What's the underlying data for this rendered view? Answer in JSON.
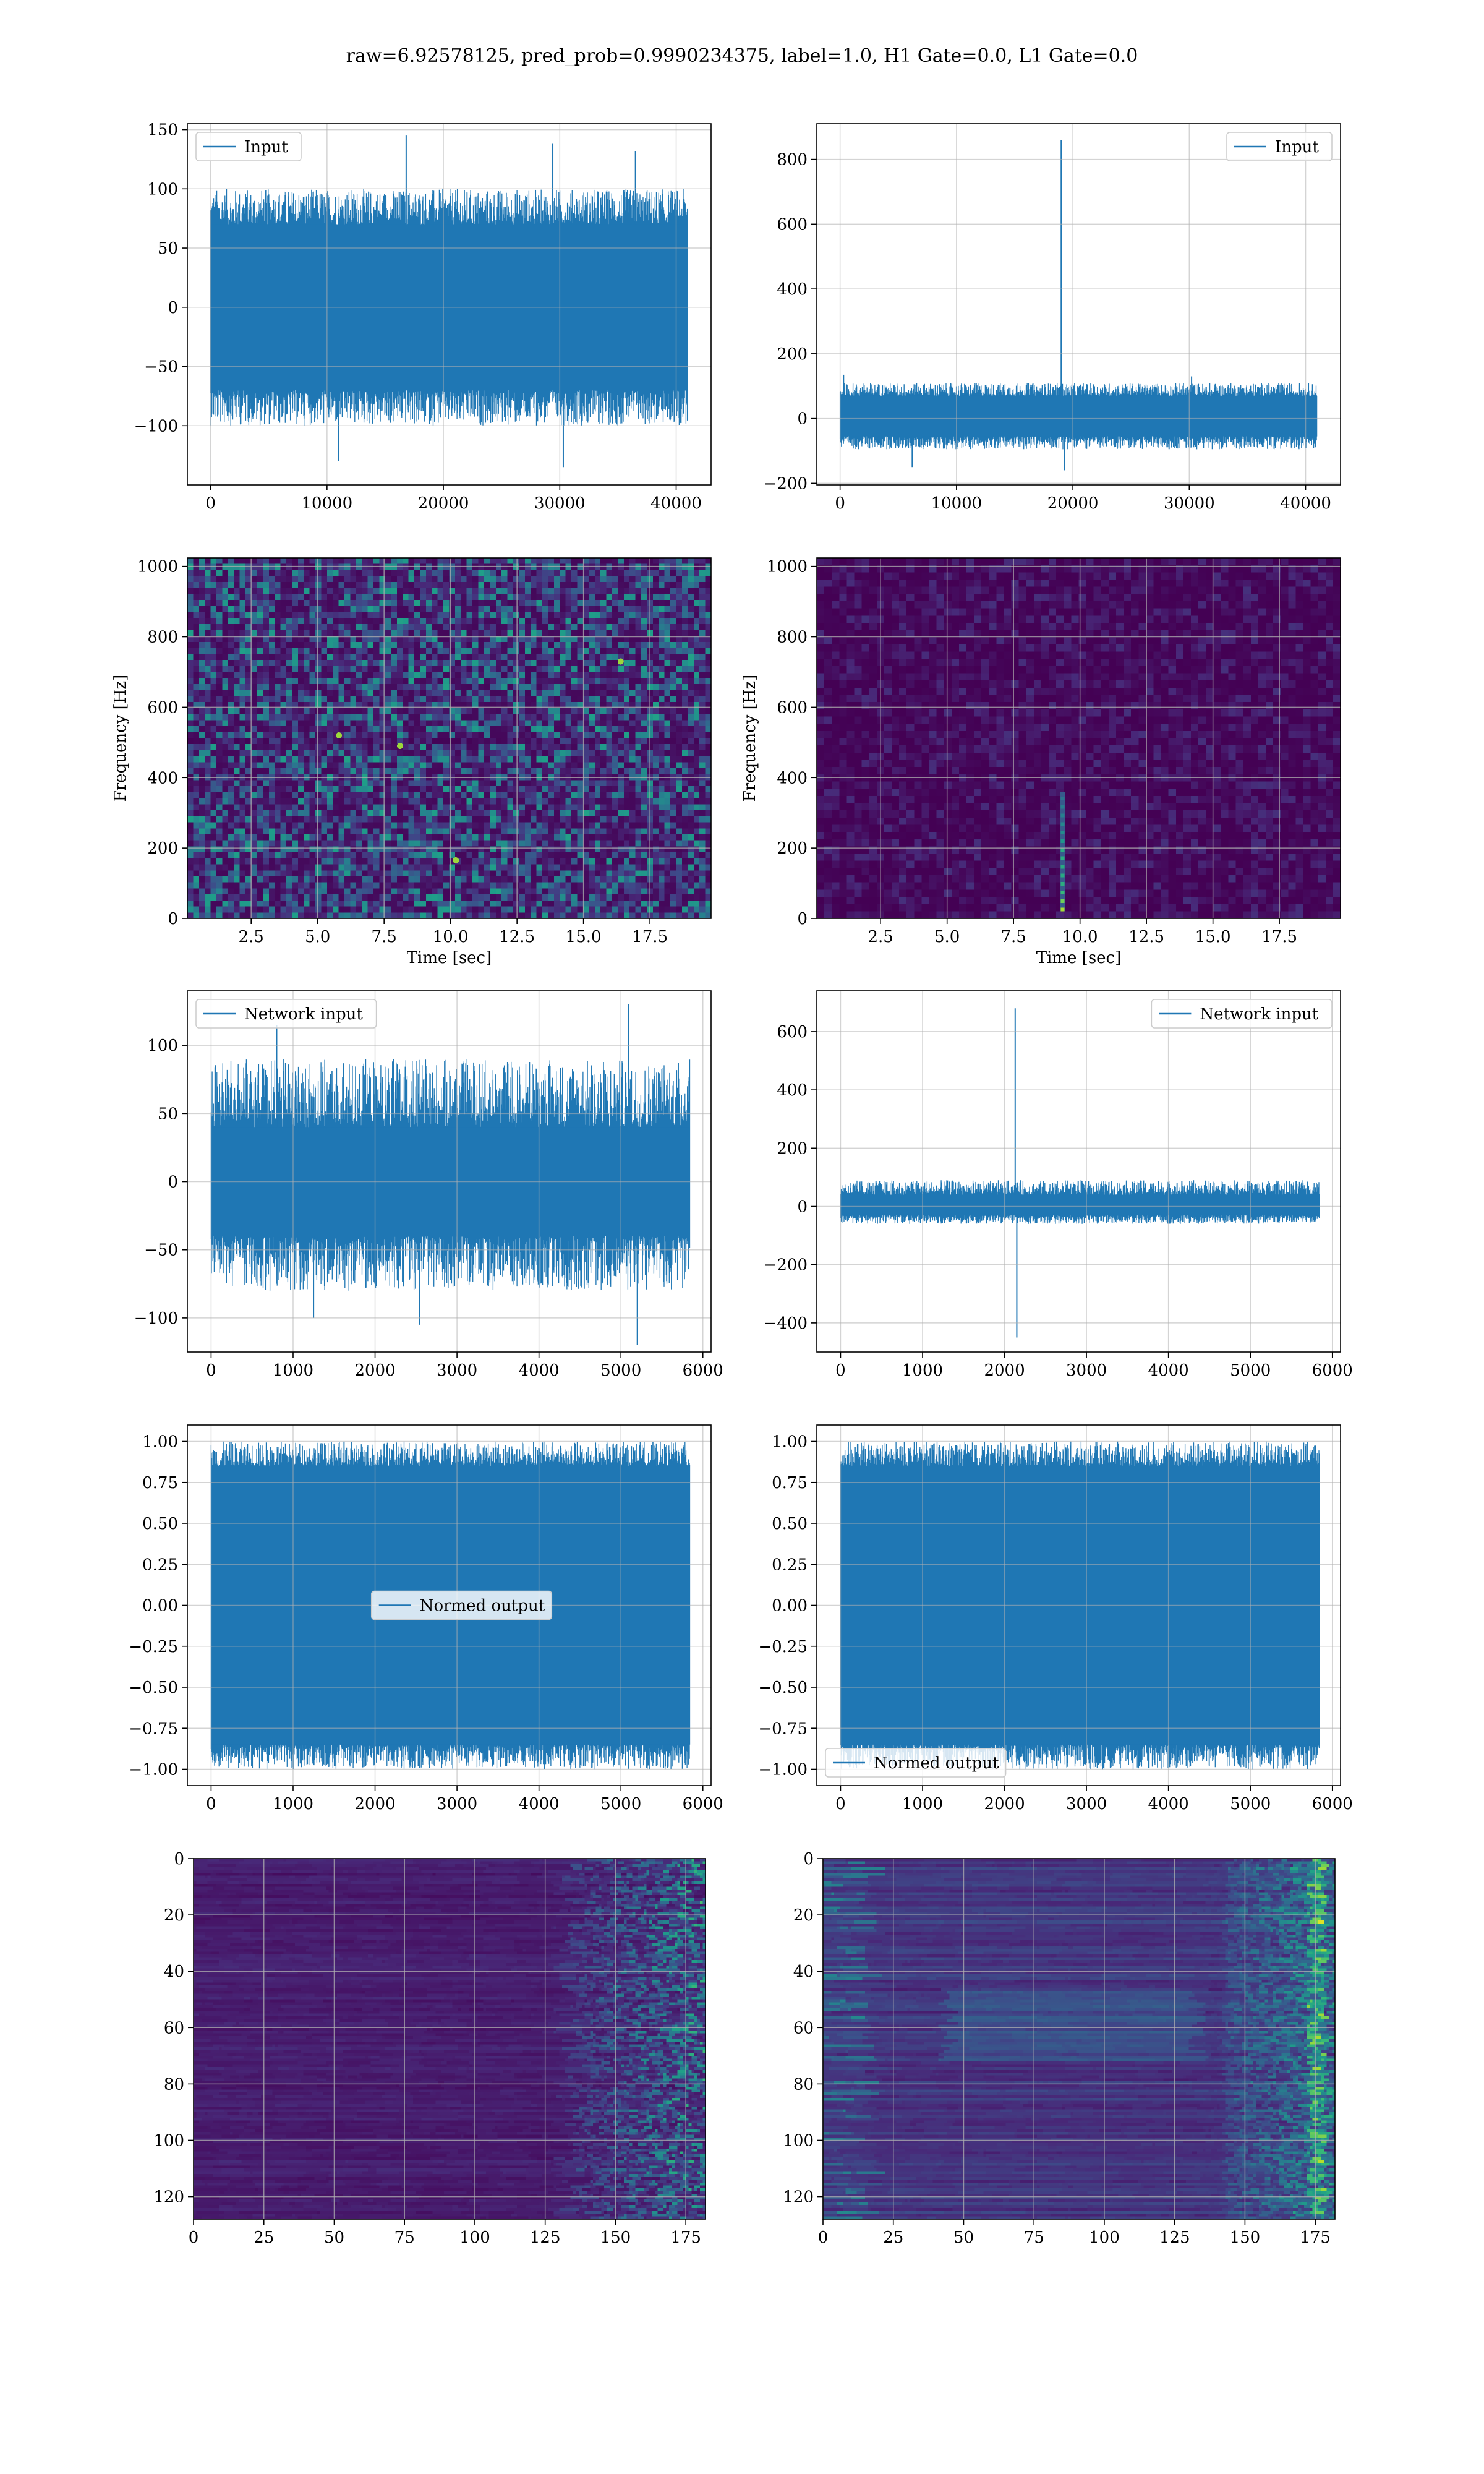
{
  "figure": {
    "suptitle": "raw=6.92578125, pred_prob=0.9990234375, label=1.0, H1 Gate=0.0, L1 Gate=0.0"
  },
  "colors": {
    "line": "#1f77b4",
    "viridis": [
      "#440154",
      "#482878",
      "#3e4a89",
      "#31688e",
      "#26828e",
      "#1f9e89",
      "#35b779",
      "#6ece58",
      "#b5de2b",
      "#fde725"
    ],
    "grid": "#b0b0b0"
  },
  "chart_data": [
    {
      "id": "h1-input",
      "type": "line",
      "grid": true,
      "legend": {
        "label": "Input",
        "placement": "upper left"
      },
      "xlim": [
        -2000,
        43000
      ],
      "ylim": [
        -150,
        155
      ],
      "xticks": [
        0,
        10000,
        20000,
        30000,
        40000
      ],
      "yticks": [
        -100,
        -50,
        0,
        50,
        100,
        150
      ],
      "series": [
        {
          "name": "Input",
          "x_range": [
            0,
            40960
          ],
          "band": [
            -70,
            70
          ],
          "envelope": [
            -100,
            100
          ],
          "spikes": [
            [
              16800,
              145
            ],
            [
              29400,
              138
            ],
            [
              36500,
              132
            ],
            [
              11000,
              -130
            ],
            [
              30300,
              -135
            ]
          ]
        }
      ]
    },
    {
      "id": "l1-input",
      "type": "line",
      "grid": true,
      "legend": {
        "label": "Input",
        "placement": "upper right"
      },
      "xlim": [
        -2000,
        43000
      ],
      "ylim": [
        -205,
        910
      ],
      "xticks": [
        0,
        10000,
        20000,
        30000,
        40000
      ],
      "yticks": [
        -200,
        0,
        200,
        400,
        600,
        800
      ],
      "series": [
        {
          "name": "Input",
          "x_range": [
            0,
            40960
          ],
          "band": [
            -55,
            70
          ],
          "envelope": [
            -95,
            110
          ],
          "spikes": [
            [
              19000,
              860
            ],
            [
              19300,
              -160
            ],
            [
              300,
              135
            ],
            [
              30200,
              130
            ],
            [
              6200,
              -150
            ]
          ]
        }
      ]
    },
    {
      "id": "h1-spectrogram",
      "type": "heatmap",
      "grid": true,
      "xlabel": "Time [sec]",
      "ylabel": "Frequency [Hz]",
      "xlim": [
        0.1,
        19.8
      ],
      "ylim": [
        0,
        1024
      ],
      "xticks": [
        2.5,
        5.0,
        7.5,
        10.0,
        12.5,
        15.0,
        17.5
      ],
      "xtick_labels": [
        "2.5",
        "5.0",
        "7.5",
        "10.0",
        "12.5",
        "15.0",
        "17.5"
      ],
      "yticks": [
        0,
        200,
        400,
        600,
        800,
        1000
      ],
      "pattern": "uniform-noise",
      "hotspots": [
        [
          8.1,
          490
        ],
        [
          10.2,
          165
        ],
        [
          5.8,
          520
        ],
        [
          16.4,
          730
        ]
      ]
    },
    {
      "id": "l1-spectrogram",
      "type": "heatmap",
      "grid": true,
      "xlabel": "Time [sec]",
      "ylabel": "Frequency [Hz]",
      "xlim": [
        0.1,
        19.8
      ],
      "ylim": [
        0,
        1024
      ],
      "xticks": [
        2.5,
        5.0,
        7.5,
        10.0,
        12.5,
        15.0,
        17.5
      ],
      "xtick_labels": [
        "2.5",
        "5.0",
        "7.5",
        "10.0",
        "12.5",
        "15.0",
        "17.5"
      ],
      "yticks": [
        0,
        200,
        400,
        600,
        800,
        1000
      ],
      "pattern": "dark-with-transient",
      "transient": {
        "time": 9.35,
        "freq_range": [
          20,
          360
        ]
      }
    },
    {
      "id": "h1-network-input",
      "type": "line",
      "grid": true,
      "legend": {
        "label": "Network input",
        "placement": "upper left"
      },
      "xlim": [
        -290,
        6100
      ],
      "ylim": [
        -125,
        140
      ],
      "xticks": [
        0,
        1000,
        2000,
        3000,
        4000,
        5000,
        6000
      ],
      "yticks": [
        -100,
        -50,
        0,
        50,
        100
      ],
      "series": [
        {
          "name": "Network input",
          "x_range": [
            0,
            5840
          ],
          "band": [
            -40,
            40
          ],
          "envelope": [
            -80,
            90
          ],
          "spikes": [
            [
              5090,
              130
            ],
            [
              800,
              115
            ],
            [
              5200,
              -120
            ],
            [
              2540,
              -105
            ],
            [
              1250,
              -100
            ]
          ]
        }
      ]
    },
    {
      "id": "l1-network-input",
      "type": "line",
      "grid": true,
      "legend": {
        "label": "Network input",
        "placement": "upper right"
      },
      "xlim": [
        -290,
        6100
      ],
      "ylim": [
        -500,
        740
      ],
      "xticks": [
        0,
        1000,
        2000,
        3000,
        4000,
        5000,
        6000
      ],
      "yticks": [
        -400,
        -200,
        0,
        200,
        400,
        600
      ],
      "series": [
        {
          "name": "Network input",
          "x_range": [
            0,
            5840
          ],
          "band": [
            -30,
            40
          ],
          "envelope": [
            -60,
            90
          ],
          "spikes": [
            [
              2130,
              680
            ],
            [
              2150,
              -450
            ]
          ]
        }
      ]
    },
    {
      "id": "h1-normed-output",
      "type": "line",
      "grid": true,
      "legend": {
        "label": "Normed output",
        "placement": "center"
      },
      "xlim": [
        -290,
        6100
      ],
      "ylim": [
        -1.1,
        1.1
      ],
      "xticks": [
        0,
        1000,
        2000,
        3000,
        4000,
        5000,
        6000
      ],
      "yticks": [
        -1.0,
        -0.75,
        -0.5,
        -0.25,
        0.0,
        0.25,
        0.5,
        0.75,
        1.0
      ],
      "ytick_labels": [
        "−1.00",
        "−0.75",
        "−0.50",
        "−0.25",
        "0.00",
        "0.25",
        "0.50",
        "0.75",
        "1.00"
      ],
      "series": [
        {
          "name": "Normed output",
          "x_range": [
            0,
            5840
          ],
          "band": [
            -0.85,
            0.85
          ],
          "envelope": [
            -1.0,
            1.0
          ],
          "spikes": []
        }
      ]
    },
    {
      "id": "l1-normed-output",
      "type": "line",
      "grid": true,
      "legend": {
        "label": "Normed output",
        "placement": "lower left"
      },
      "xlim": [
        -290,
        6100
      ],
      "ylim": [
        -1.1,
        1.1
      ],
      "xticks": [
        0,
        1000,
        2000,
        3000,
        4000,
        5000,
        6000
      ],
      "yticks": [
        -1.0,
        -0.75,
        -0.5,
        -0.25,
        0.0,
        0.25,
        0.5,
        0.75,
        1.0
      ],
      "ytick_labels": [
        "−1.00",
        "−0.75",
        "−0.50",
        "−0.25",
        "0.00",
        "0.25",
        "0.50",
        "0.75",
        "1.00"
      ],
      "series": [
        {
          "name": "Normed output",
          "x_range": [
            0,
            5840
          ],
          "band": [
            -0.85,
            0.85
          ],
          "envelope": [
            -1.0,
            1.0
          ],
          "spikes": []
        }
      ]
    },
    {
      "id": "h1-feature-map",
      "type": "heatmap",
      "grid": true,
      "xlim": [
        0,
        182
      ],
      "ylim": [
        128,
        0
      ],
      "xticks": [
        0,
        25,
        50,
        75,
        100,
        125,
        150,
        175
      ],
      "yticks": [
        0,
        20,
        40,
        60,
        80,
        100,
        120
      ],
      "pattern": "feature-map-right-heavy"
    },
    {
      "id": "l1-feature-map",
      "type": "heatmap",
      "grid": true,
      "xlim": [
        0,
        182
      ],
      "ylim": [
        128,
        0
      ],
      "xticks": [
        0,
        25,
        50,
        75,
        100,
        125,
        150,
        175
      ],
      "yticks": [
        0,
        20,
        40,
        60,
        80,
        100,
        120
      ],
      "pattern": "feature-map-bright"
    }
  ]
}
